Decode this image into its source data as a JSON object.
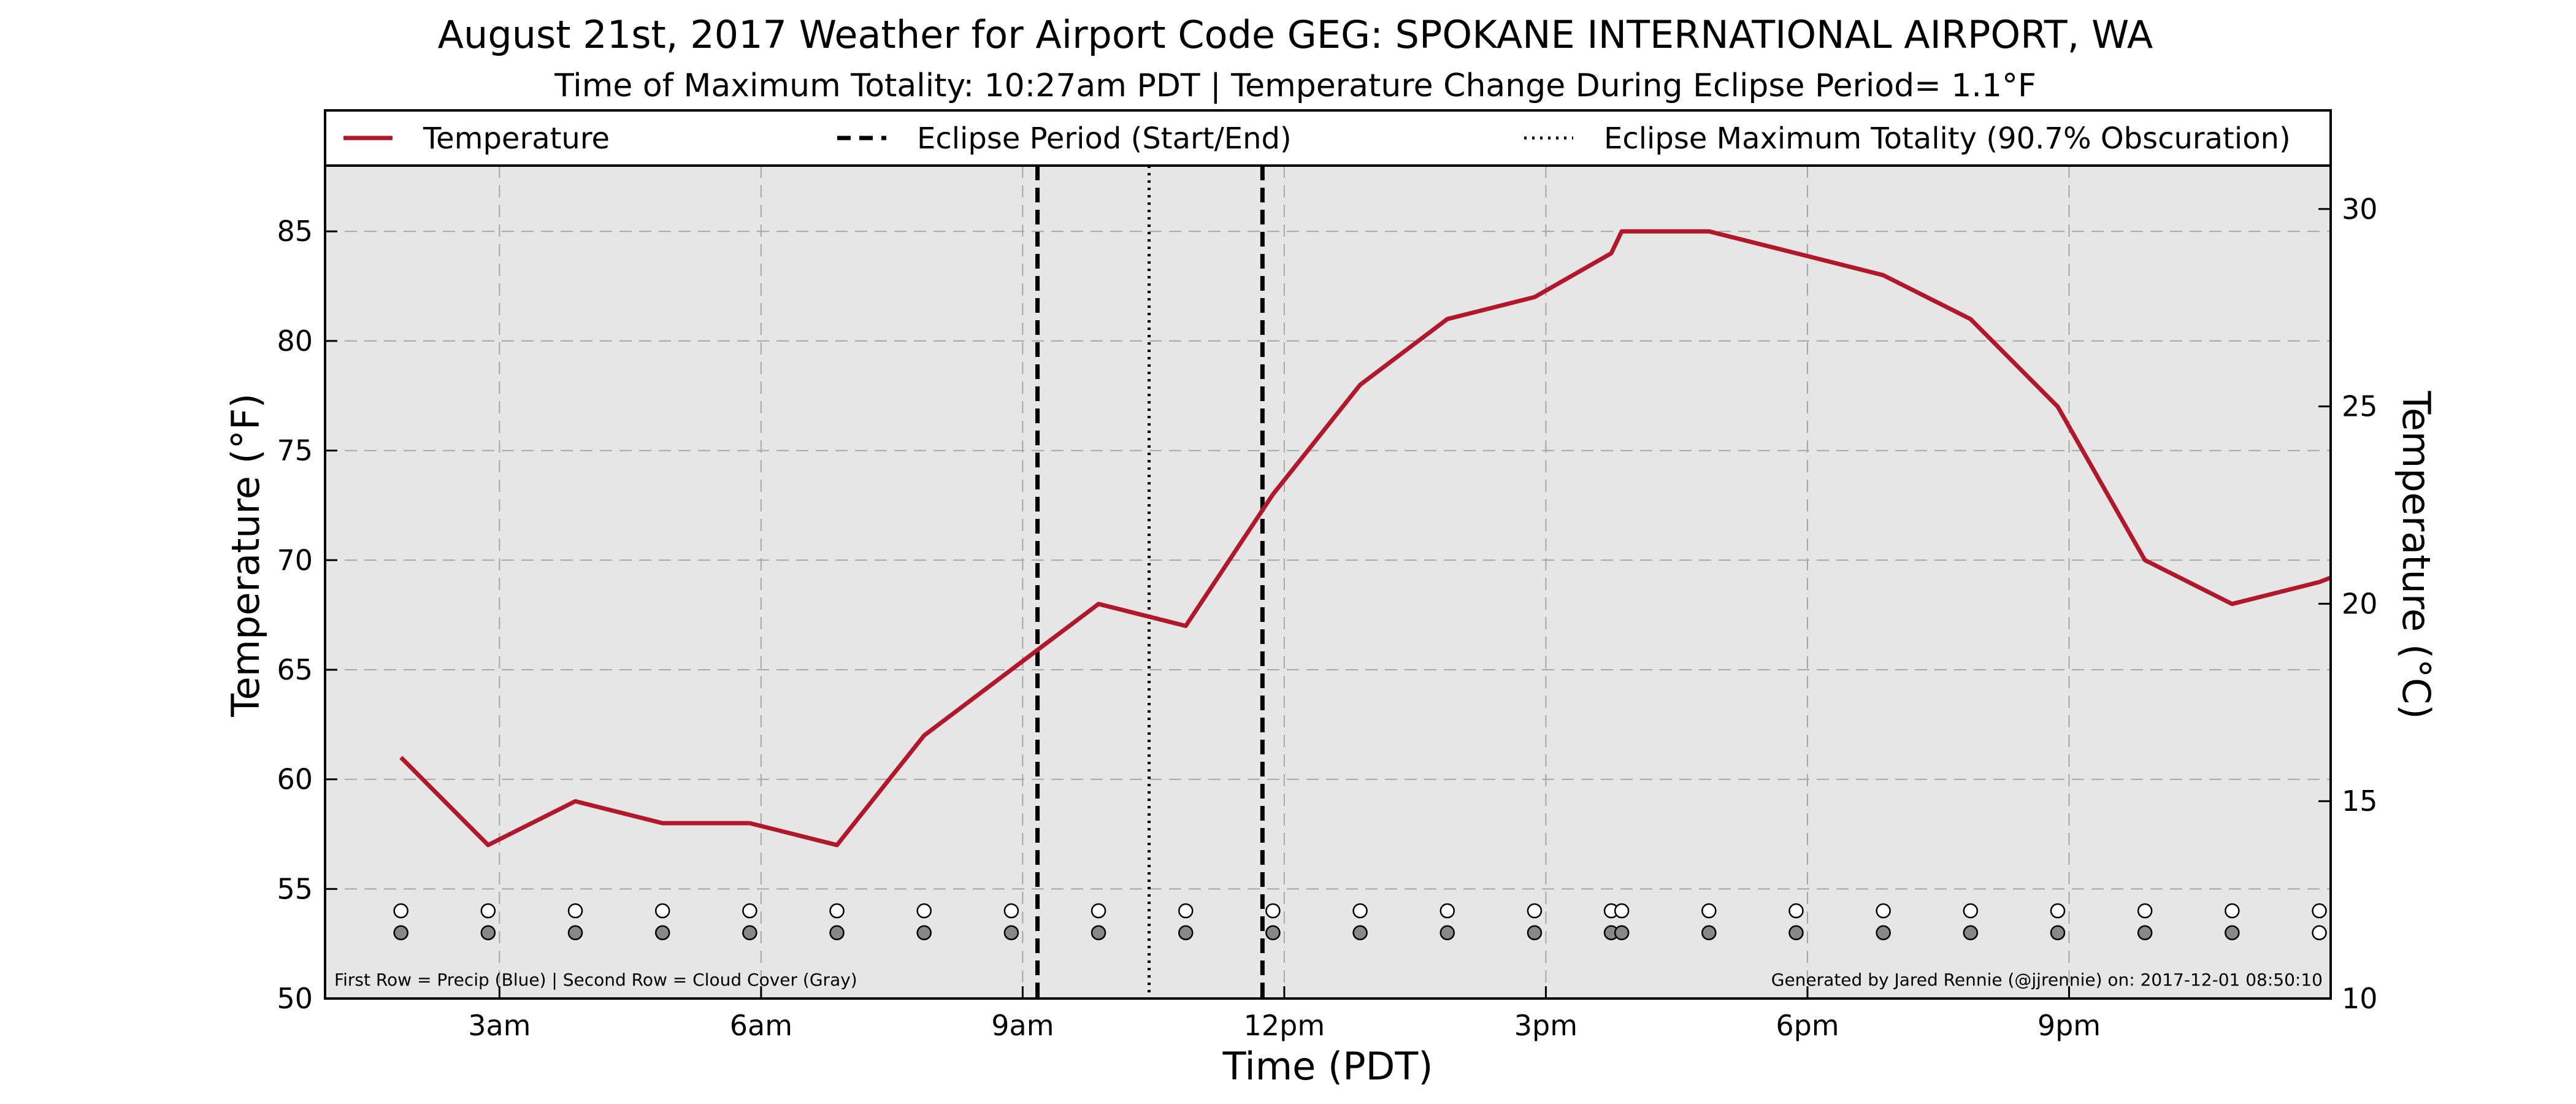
{
  "chart_data": {
    "type": "line",
    "title": "August 21st, 2017 Weather for Airport Code GEG: SPOKANE INTERNATIONAL AIRPORT, WA",
    "subtitle": "Time of Maximum Totality: 10:27am PDT | Temperature Change During Eclipse Period= 1.1°F",
    "xlabel": "Time (PDT)",
    "ylabel": "Temperature (°F)",
    "y2label": "Temperature (°C)",
    "xlim": [
      1.0,
      24.0
    ],
    "ylim": [
      50,
      88
    ],
    "y2lim": [
      10,
      31.1
    ],
    "x_ticks": [
      {
        "value": 3,
        "label": "3am"
      },
      {
        "value": 6,
        "label": "6am"
      },
      {
        "value": 9,
        "label": "9am"
      },
      {
        "value": 12,
        "label": "12pm"
      },
      {
        "value": 15,
        "label": "3pm"
      },
      {
        "value": 18,
        "label": "6pm"
      },
      {
        "value": 21,
        "label": "9pm"
      }
    ],
    "y_ticks": [
      50,
      55,
      60,
      65,
      70,
      75,
      80,
      85
    ],
    "y2_ticks": [
      10,
      15,
      20,
      25,
      30
    ],
    "grid": true,
    "legend_position": "top",
    "legend": [
      {
        "label": "Temperature",
        "style": "solid"
      },
      {
        "label": "Eclipse Period (Start/End)",
        "style": "dashed"
      },
      {
        "label": "Eclipse Maximum Totality (90.7% Obscuration)",
        "style": "dotted"
      }
    ],
    "series": [
      {
        "name": "Temperature",
        "color": "#b2182b",
        "x": [
          1.87,
          2.87,
          3.87,
          4.87,
          5.87,
          6.87,
          7.87,
          8.87,
          9.87,
          10.87,
          11.87,
          12.87,
          13.87,
          14.87,
          15.75,
          15.87,
          16.87,
          17.87,
          18.87,
          19.87,
          20.87,
          21.87,
          22.87,
          23.87,
          24.0
        ],
        "values": [
          61,
          57,
          59,
          58,
          58,
          57,
          62,
          65,
          68,
          67,
          73,
          78,
          81,
          82,
          84,
          85,
          85,
          84,
          83,
          81,
          77,
          70,
          68,
          69,
          69.2
        ]
      }
    ],
    "eclipse_period": {
      "start": 9.17,
      "end": 11.75
    },
    "eclipse_max": 10.45,
    "precip_row": {
      "y": 54,
      "color": "#ffffff",
      "x": [
        1.87,
        2.87,
        3.87,
        4.87,
        5.87,
        6.87,
        7.87,
        8.87,
        9.87,
        10.87,
        11.87,
        12.87,
        13.87,
        14.87,
        15.75,
        15.87,
        16.87,
        17.87,
        18.87,
        19.87,
        20.87,
        21.87,
        22.87,
        23.87
      ]
    },
    "cloud_row": {
      "y": 53,
      "x": [
        1.87,
        2.87,
        3.87,
        4.87,
        5.87,
        6.87,
        7.87,
        8.87,
        9.87,
        10.87,
        11.87,
        12.87,
        13.87,
        14.87,
        15.75,
        15.87,
        16.87,
        17.87,
        18.87,
        19.87,
        20.87,
        21.87,
        22.87,
        23.87
      ],
      "colors": [
        "#888888",
        "#888888",
        "#888888",
        "#888888",
        "#888888",
        "#888888",
        "#888888",
        "#888888",
        "#888888",
        "#888888",
        "#888888",
        "#888888",
        "#888888",
        "#888888",
        "#888888",
        "#888888",
        "#888888",
        "#888888",
        "#888888",
        "#888888",
        "#888888",
        "#888888",
        "#888888",
        "#ffffff"
      ]
    },
    "footnote_left": "First Row = Precip (Blue) | Second Row = Cloud Cover (Gray)",
    "footnote_right": "Generated by Jared Rennie (@jjrennie) on: 2017-12-01 08:50:10"
  }
}
